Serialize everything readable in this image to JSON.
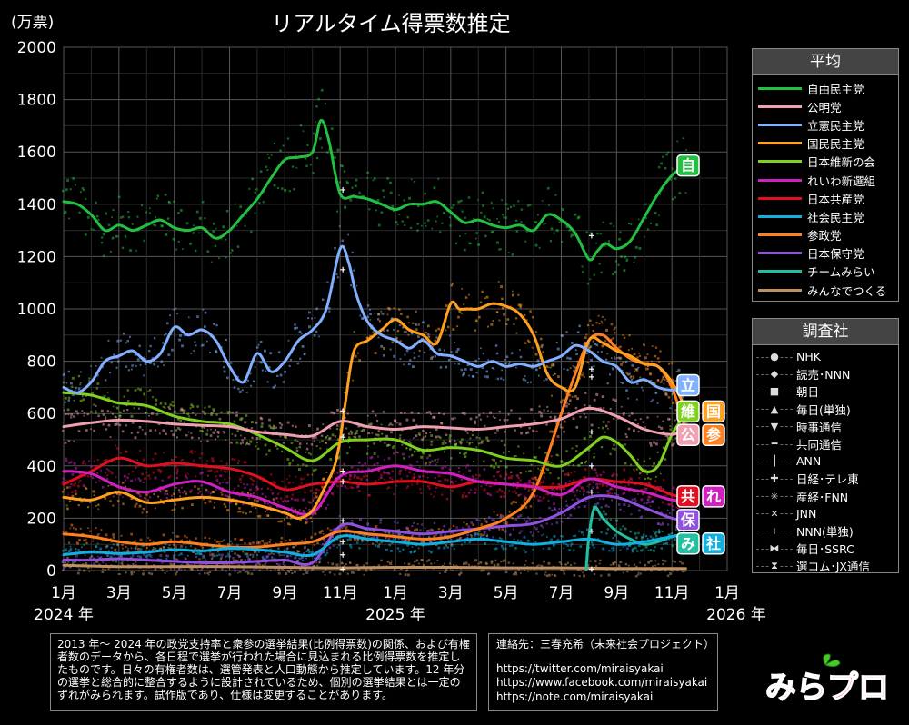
{
  "chart_data": {
    "type": "line",
    "title": "リアルタイム得票数推定",
    "unit_label": "(万票)",
    "ylim": [
      0,
      2000
    ],
    "y_ticks": [
      "0",
      "200",
      "400",
      "600",
      "800",
      "1000",
      "1200",
      "1400",
      "1600",
      "1800",
      "2000"
    ],
    "x_ticks": [
      {
        "month": 1,
        "label": "1月"
      },
      {
        "month": 3,
        "label": "3月"
      },
      {
        "month": 5,
        "label": "5月"
      },
      {
        "month": 7,
        "label": "7月"
      },
      {
        "month": 9,
        "label": "9月"
      },
      {
        "month": 11,
        "label": "11月"
      },
      {
        "month": 13,
        "label": "1月"
      },
      {
        "month": 15,
        "label": "3月"
      },
      {
        "month": 17,
        "label": "5月"
      },
      {
        "month": 19,
        "label": "7月"
      },
      {
        "month": 21,
        "label": "9月"
      },
      {
        "month": 23,
        "label": "11月"
      },
      {
        "month": 25,
        "label": "1月"
      }
    ],
    "year_labels": [
      {
        "month": 1,
        "label": "2024 年"
      },
      {
        "month": 13,
        "label": "2025 年"
      },
      {
        "month": 25,
        "label": "2026 年"
      }
    ],
    "xlim": [
      1,
      25
    ],
    "series": [
      {
        "name": "自由民主党",
        "color": "#22c040",
        "x": [
          1,
          1.5,
          2,
          2.5,
          3,
          3.5,
          4,
          4.5,
          5,
          5.5,
          6,
          6.5,
          7,
          7.5,
          8,
          8.5,
          9,
          9.5,
          10,
          10.3,
          10.6,
          11,
          11.5,
          12,
          12.5,
          13,
          13.5,
          14,
          14.5,
          15,
          15.5,
          16,
          16.5,
          17,
          17.5,
          18,
          18.5,
          19,
          19.5,
          20,
          20.3,
          20.6,
          21,
          21.5,
          22,
          22.5,
          23,
          23.5
        ],
        "values": [
          1410,
          1400,
          1360,
          1300,
          1320,
          1300,
          1320,
          1340,
          1310,
          1300,
          1310,
          1270,
          1300,
          1360,
          1420,
          1500,
          1570,
          1580,
          1600,
          1720,
          1640,
          1440,
          1430,
          1420,
          1400,
          1380,
          1400,
          1400,
          1410,
          1370,
          1330,
          1340,
          1320,
          1310,
          1320,
          1300,
          1360,
          1340,
          1290,
          1190,
          1220,
          1250,
          1230,
          1260,
          1350,
          1440,
          1510,
          1550
        ]
      },
      {
        "name": "公明党",
        "color": "#f0a0b0",
        "x": [
          1,
          2,
          3,
          4,
          5,
          6,
          7,
          8,
          9,
          10,
          11,
          12,
          13,
          14,
          15,
          16,
          17,
          18,
          19,
          20,
          21,
          22,
          23,
          23.5
        ],
        "values": [
          550,
          565,
          575,
          570,
          560,
          555,
          550,
          530,
          520,
          515,
          570,
          550,
          540,
          550,
          545,
          540,
          550,
          560,
          580,
          620,
          590,
          540,
          520,
          540
        ]
      },
      {
        "name": "立憲民主党",
        "color": "#80b0ff",
        "x": [
          1,
          1.5,
          2,
          2.5,
          3,
          3.5,
          4,
          4.5,
          5,
          5.5,
          6,
          6.5,
          7,
          7.5,
          8,
          8.5,
          9,
          9.5,
          10,
          10.5,
          11,
          11.3,
          11.6,
          12,
          12.5,
          13,
          13.5,
          14,
          14.5,
          15,
          15.5,
          16,
          16.5,
          17,
          17.5,
          18,
          18.5,
          19,
          19.5,
          20,
          20.5,
          21,
          21.5,
          22,
          22.5,
          23,
          23.5
        ],
        "values": [
          700,
          680,
          720,
          800,
          820,
          840,
          800,
          830,
          930,
          900,
          920,
          880,
          780,
          720,
          830,
          760,
          800,
          880,
          920,
          1000,
          1230,
          1180,
          1050,
          950,
          900,
          880,
          850,
          880,
          830,
          820,
          800,
          780,
          800,
          780,
          790,
          780,
          800,
          820,
          860,
          840,
          800,
          780,
          720,
          730,
          700,
          690,
          700
        ]
      },
      {
        "name": "国民民主党",
        "color": "#ffa020",
        "x": [
          1,
          2,
          3,
          4,
          5,
          6,
          7,
          8,
          9,
          9.5,
          10,
          10.5,
          10.8,
          11,
          11.2,
          11.5,
          12,
          12.5,
          13,
          13.5,
          14,
          14.5,
          15,
          15.3,
          15.6,
          16,
          16.5,
          17,
          17.5,
          18,
          18.5,
          19,
          19.5,
          20,
          20.5,
          21,
          21.5,
          22,
          22.5,
          23,
          23.5
        ],
        "values": [
          280,
          270,
          300,
          260,
          270,
          280,
          270,
          250,
          220,
          200,
          230,
          330,
          400,
          500,
          650,
          840,
          880,
          920,
          960,
          920,
          900,
          870,
          1020,
          1000,
          1000,
          1000,
          1020,
          1010,
          980,
          900,
          750,
          700,
          700,
          880,
          870,
          840,
          820,
          790,
          780,
          720,
          620
        ]
      },
      {
        "name": "日本維新の会",
        "color": "#80d020",
        "x": [
          1,
          2,
          3,
          4,
          5,
          6,
          7,
          8,
          9,
          10,
          11,
          12,
          13,
          14,
          15,
          16,
          17,
          18,
          19,
          20,
          20.5,
          21,
          21.5,
          22,
          22.5,
          23,
          23.5
        ],
        "values": [
          680,
          670,
          640,
          630,
          590,
          570,
          560,
          520,
          470,
          420,
          490,
          500,
          500,
          460,
          470,
          460,
          430,
          420,
          400,
          470,
          510,
          490,
          440,
          380,
          400,
          520,
          600
        ]
      },
      {
        "name": "れいわ新選組",
        "color": "#d020c0",
        "x": [
          1,
          2,
          3,
          4,
          5,
          6,
          7,
          8,
          9,
          10,
          11,
          12,
          13,
          14,
          15,
          16,
          17,
          18,
          19,
          20,
          21,
          22,
          23,
          23.5
        ],
        "values": [
          380,
          370,
          320,
          300,
          330,
          340,
          300,
          280,
          240,
          220,
          360,
          380,
          400,
          380,
          370,
          340,
          330,
          320,
          290,
          350,
          320,
          300,
          270,
          270
        ]
      },
      {
        "name": "日本共産党",
        "color": "#e01020",
        "x": [
          1,
          2,
          3,
          4,
          5,
          6,
          7,
          8,
          9,
          10,
          11,
          12,
          13,
          14,
          15,
          16,
          17,
          18,
          19,
          20,
          21,
          22,
          23,
          23.5
        ],
        "values": [
          330,
          380,
          430,
          400,
          410,
          400,
          390,
          360,
          310,
          330,
          340,
          330,
          340,
          340,
          320,
          340,
          330,
          320,
          320,
          350,
          340,
          330,
          290,
          280
        ]
      },
      {
        "name": "社会民主党",
        "color": "#10b0e0",
        "x": [
          1,
          2,
          3,
          4,
          5,
          6,
          7,
          8,
          9,
          10,
          11,
          12,
          13,
          14,
          15,
          16,
          17,
          18,
          19,
          20,
          21,
          22,
          23,
          23.5
        ],
        "values": [
          60,
          70,
          65,
          70,
          80,
          75,
          85,
          80,
          70,
          60,
          130,
          120,
          110,
          100,
          110,
          120,
          110,
          100,
          110,
          120,
          100,
          110,
          130,
          135
        ]
      },
      {
        "name": "参政党",
        "color": "#ff8020",
        "x": [
          1,
          2,
          3,
          4,
          5,
          6,
          7,
          8,
          9,
          10,
          11,
          12,
          13,
          14,
          15,
          16,
          17,
          18,
          19,
          19.5,
          20,
          20.5,
          21,
          21.5,
          22,
          22.5,
          23,
          23.5
        ],
        "values": [
          140,
          130,
          110,
          100,
          110,
          100,
          90,
          90,
          100,
          110,
          150,
          140,
          130,
          120,
          130,
          160,
          200,
          300,
          600,
          750,
          880,
          900,
          850,
          810,
          790,
          780,
          700,
          540
        ]
      },
      {
        "name": "日本保守党",
        "color": "#9050e0",
        "x": [
          1,
          2,
          3,
          4,
          5,
          6,
          7,
          8,
          9,
          10,
          11,
          12,
          13,
          14,
          15,
          16,
          17,
          18,
          19,
          20,
          21,
          22,
          23,
          23.5
        ],
        "values": [
          40,
          40,
          45,
          40,
          35,
          30,
          30,
          35,
          40,
          30,
          170,
          160,
          150,
          140,
          150,
          160,
          170,
          180,
          220,
          280,
          280,
          240,
          200,
          195
        ]
      },
      {
        "name": "チームみらい",
        "color": "#20c0a0",
        "x": [
          19.9,
          20,
          20.2,
          20.5,
          21,
          21.5,
          22,
          22.5,
          23,
          23.5
        ],
        "values": [
          5,
          130,
          240,
          200,
          150,
          120,
          100,
          110,
          130,
          140
        ]
      },
      {
        "name": "みんなでつくる",
        "color": "#c09060",
        "x": [
          1,
          3,
          5,
          7,
          9,
          11,
          13,
          15,
          17,
          19,
          21,
          23,
          23.5
        ],
        "values": [
          20,
          15,
          15,
          15,
          12,
          10,
          12,
          12,
          10,
          10,
          8,
          8,
          8
        ]
      }
    ],
    "polls": [
      "NHK",
      "読売･NNN",
      "朝日",
      "毎日(単独)",
      "時事通信",
      "共同通信",
      "ANN",
      "日経･テレ東",
      "産経･FNN",
      "JNN",
      "NNN(単独)",
      "毎日･SSRC",
      "選コム･JX通信"
    ],
    "end_labels": [
      {
        "text": "自",
        "color": "#22c040",
        "value": 1550
      },
      {
        "text": "立",
        "color": "#80b0ff",
        "value": 710
      },
      {
        "text": "維",
        "color": "#80d020",
        "value": 610
      },
      {
        "text": "国",
        "color": "#ffa020",
        "value": 610
      },
      {
        "text": "公",
        "color": "#f0a0b0",
        "value": 520
      },
      {
        "text": "参",
        "color": "#ff8020",
        "value": 520
      },
      {
        "text": "共",
        "color": "#e01020",
        "value": 285
      },
      {
        "text": "れ",
        "color": "#d020c0",
        "value": 285
      },
      {
        "text": "保",
        "color": "#9050e0",
        "value": 195
      },
      {
        "text": "み",
        "color": "#20c0a0",
        "value": 105
      },
      {
        "text": "社",
        "color": "#10b0e0",
        "value": 105
      }
    ]
  },
  "legend_avg": {
    "title": "平均",
    "items": [
      {
        "label": "自由民主党",
        "color": "#22c040"
      },
      {
        "label": "公明党",
        "color": "#f0a0b0"
      },
      {
        "label": "立憲民主党",
        "color": "#80b0ff"
      },
      {
        "label": "国民民主党",
        "color": "#ffa020"
      },
      {
        "label": "日本維新の会",
        "color": "#80d020"
      },
      {
        "label": "れいわ新選組",
        "color": "#d020c0"
      },
      {
        "label": "日本共産党",
        "color": "#e01020"
      },
      {
        "label": "社会民主党",
        "color": "#10b0e0"
      },
      {
        "label": "参政党",
        "color": "#ff8020"
      },
      {
        "label": "日本保守党",
        "color": "#9050e0"
      },
      {
        "label": "チームみらい",
        "color": "#20c0a0"
      },
      {
        "label": "みんなでつくる",
        "color": "#c09060"
      }
    ]
  },
  "legend_survey": {
    "title": "調査社",
    "items": [
      {
        "label": "NHK",
        "mark": "●"
      },
      {
        "label": "読売･NNN",
        "mark": "◆"
      },
      {
        "label": "朝日",
        "mark": "■"
      },
      {
        "label": "毎日(単独)",
        "mark": "▲"
      },
      {
        "label": "時事通信",
        "mark": "▼"
      },
      {
        "label": "共同通信",
        "mark": "━"
      },
      {
        "label": "ANN",
        "mark": "┃"
      },
      {
        "label": "日経･テレ東",
        "mark": "✚"
      },
      {
        "label": "産経･FNN",
        "mark": "✳"
      },
      {
        "label": "JNN",
        "mark": "✕"
      },
      {
        "label": "NNN(単独)",
        "mark": "+"
      },
      {
        "label": "毎日･SSRC",
        "mark": "⧓"
      },
      {
        "label": "選コム･JX通信",
        "mark": "⧗"
      }
    ]
  },
  "note": "2013 年～ 2024 年の政党支持率と衆参の選挙結果(比例得票数)の関係、および有権者数のデータから、各日程で選挙が行われた場合に見込まれる比例得票数を推定したものです。日々の有権者数は、選管発表と人口動態から推定しています。12 年分の選挙と総合的に整合するように設計されているため、個別の選挙結果とは一定のずれがみられます。試作版であり、仕様は変更することがあります。",
  "contact": {
    "title": "連絡先：三春充希（未来社会プロジェクト）",
    "links": [
      "https://twitter.com/miraisyakai",
      "https://www.facebook.com/miraisyakai",
      "https://note.com/miraisyakai"
    ]
  },
  "logo_text": "みらプロ"
}
